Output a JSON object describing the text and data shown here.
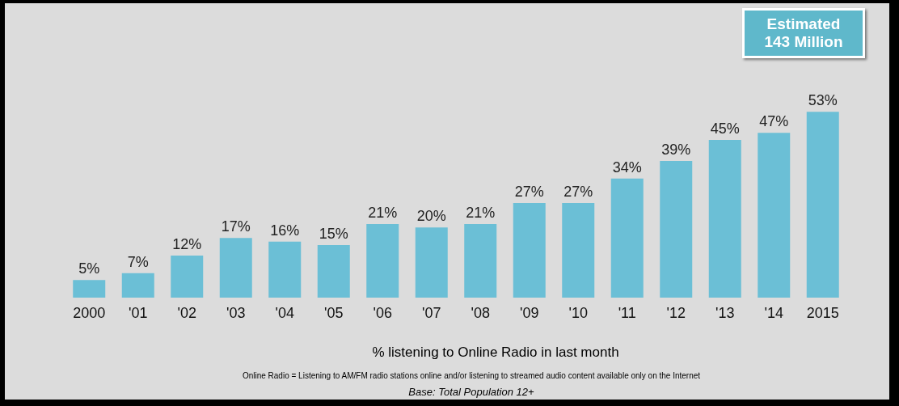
{
  "chart_data": {
    "type": "bar",
    "categories": [
      "2000",
      "'01",
      "'02",
      "'03",
      "'04",
      "'05",
      "'06",
      "'07",
      "'08",
      "'09",
      "'10",
      "'11",
      "'12",
      "'13",
      "'14",
      "2015"
    ],
    "values": [
      5,
      7,
      12,
      17,
      16,
      15,
      21,
      20,
      21,
      27,
      27,
      34,
      39,
      45,
      47,
      53
    ],
    "value_labels": [
      "5%",
      "7%",
      "12%",
      "17%",
      "16%",
      "15%",
      "21%",
      "20%",
      "21%",
      "27%",
      "27%",
      "34%",
      "39%",
      "45%",
      "47%",
      "53%"
    ],
    "color": "#6bbfd6",
    "xlabel": "% listening to Online Radio in last month",
    "annotations": [
      "Estimated\n143 Million",
      "Online Radio = Listening to AM/FM radio stations online and/or listening to streamed audio content available only on the Internet",
      "Base: Total Population 12+"
    ]
  }
}
